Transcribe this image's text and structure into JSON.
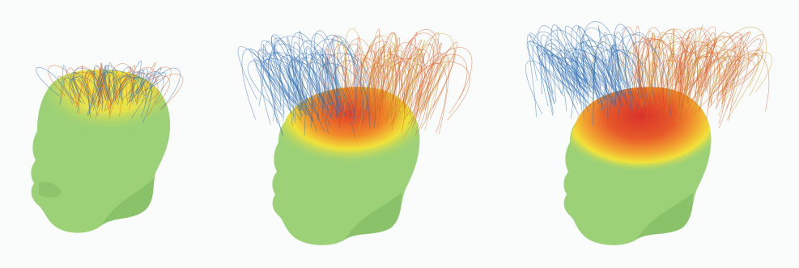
{
  "figure": {
    "panels": [
      {
        "id": "head-1",
        "spread": 0.35,
        "heat": 0.35,
        "lines": 70
      },
      {
        "id": "head-2",
        "spread": 0.75,
        "heat": 0.75,
        "lines": 150
      },
      {
        "id": "head-3",
        "spread": 1.0,
        "heat": 0.9,
        "lines": 180
      }
    ],
    "colors": {
      "background": "#fafbfb",
      "head_base": "#9cd177",
      "head_shadow": "#7fb862",
      "heat_yellow": "#f2e23a",
      "heat_orange": "#f08a2a",
      "heat_red": "#e23a28",
      "line_blue": "#2f6db3",
      "line_orange": "#d9652c",
      "line_gold": "#c9a12a"
    }
  }
}
